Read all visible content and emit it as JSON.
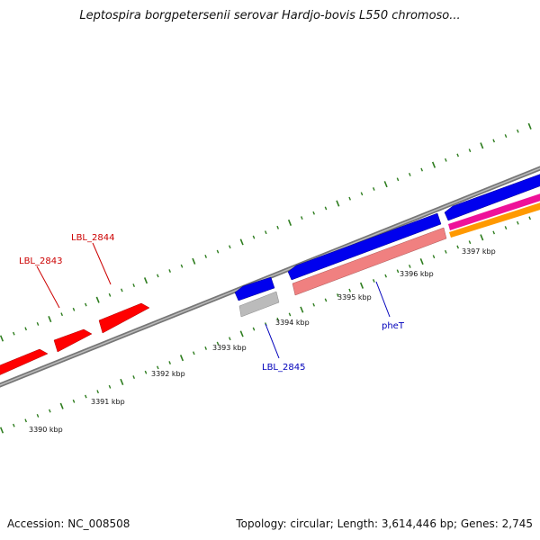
{
  "title": "Leptospira borgpetersenii serovar Hardjo-bovis L550 chromoso...",
  "footer": {
    "accession": "Accession: NC_008508",
    "summary": "Topology: circular; Length: 3,614,446 bp; Genes: 2,745"
  },
  "colors": {
    "backbone": "#888888",
    "ticks": "#2e7d1f",
    "forward_gene": "#ff0000",
    "reverse_gene": "#0000ee",
    "rna_gene": "#f08080",
    "gray_gene": "#bbbbbb",
    "magenta_feature": "#ee1199",
    "orange_feature": "#ff9900",
    "red_label": "#cc0000",
    "blue_label": "#0000bb"
  },
  "tick_labels": [
    "3390 kbp",
    "3391 kbp",
    "3392 kbp",
    "3393 kbp",
    "3394 kbp",
    "3395 kbp",
    "3396 kbp",
    "3397 kbp"
  ],
  "gene_labels": [
    {
      "id": "lbl-2844",
      "text": "LBL_2844",
      "color": "red"
    },
    {
      "id": "lbl-2843",
      "text": "LBL_2843",
      "color": "red"
    },
    {
      "id": "lbl-2845",
      "text": "LBL_2845",
      "color": "blue"
    },
    {
      "id": "phet",
      "text": "pheT",
      "color": "blue"
    }
  ]
}
